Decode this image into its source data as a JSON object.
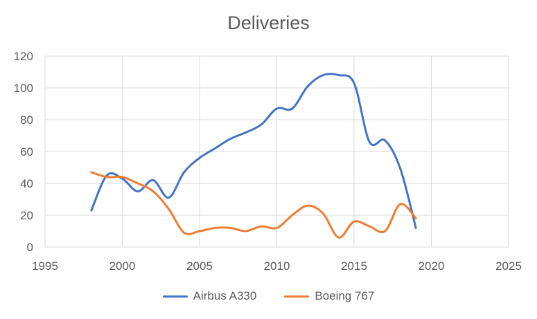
{
  "chart_data": {
    "type": "line",
    "title": "Deliveries",
    "xlabel": "",
    "ylabel": "",
    "xlim": [
      1995,
      2025
    ],
    "ylim": [
      0,
      120
    ],
    "xticks": [
      1995,
      2000,
      2005,
      2010,
      2015,
      2020,
      2025
    ],
    "yticks": [
      0,
      20,
      40,
      60,
      80,
      100,
      120
    ],
    "grid": true,
    "legend_position": "bottom",
    "smooth": true,
    "x": [
      1998,
      1999,
      2000,
      2001,
      2002,
      2003,
      2004,
      2005,
      2006,
      2007,
      2008,
      2009,
      2010,
      2011,
      2012,
      2013,
      2014,
      2015,
      2016,
      2017,
      2018,
      2019
    ],
    "series": [
      {
        "name": "Airbus A330",
        "color": "#4472C4",
        "values": [
          23,
          45,
          43,
          35,
          42,
          31,
          47,
          56,
          62,
          68,
          72,
          77,
          87,
          87,
          101,
          108,
          108,
          103,
          66,
          67,
          49,
          12
        ]
      },
      {
        "name": "Boeing 767",
        "color": "#ED7D31",
        "values": [
          47,
          44,
          44,
          40,
          35,
          24,
          9,
          10,
          12,
          12,
          10,
          13,
          12,
          20,
          26,
          21,
          6,
          16,
          13,
          10,
          27,
          18
        ]
      }
    ]
  }
}
